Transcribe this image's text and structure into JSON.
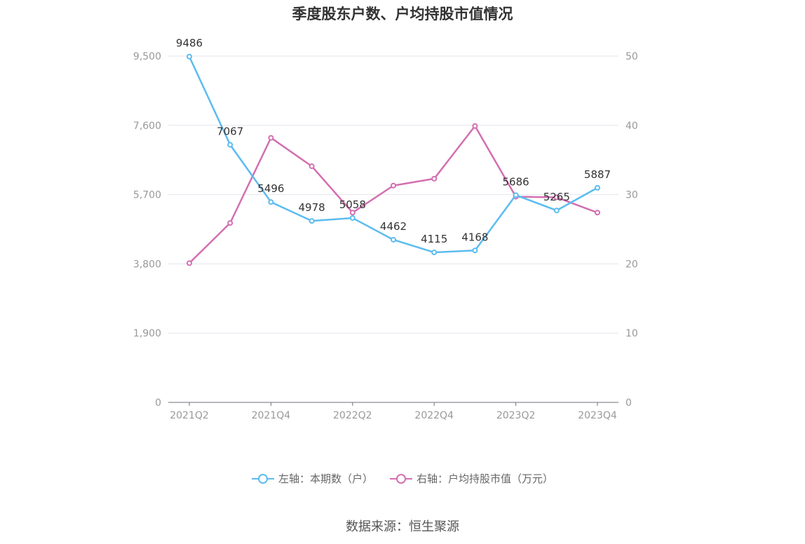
{
  "title": "季度股东户数、户均持股市值情况",
  "source": "数据来源：恒生聚源",
  "colors": {
    "left_series": "#5bbcf0",
    "right_series": "#d36fb0"
  },
  "chart_data": {
    "type": "line",
    "x": [
      "2021Q2",
      "2021Q3",
      "2021Q4",
      "2022Q1",
      "2022Q2",
      "2022Q3",
      "2022Q4",
      "2023Q1",
      "2023Q2",
      "2023Q3",
      "2023Q4"
    ],
    "x_tick_labels": [
      "2021Q2",
      "2021Q4",
      "2022Q2",
      "2022Q4",
      "2023Q2",
      "2023Q4"
    ],
    "left_axis": {
      "ylim": [
        0,
        9500
      ],
      "ticks": [
        0,
        1900,
        3800,
        5700,
        7600,
        9500
      ],
      "tick_labels": [
        "0",
        "1,900",
        "3,800",
        "5,700",
        "7,600",
        "9,500"
      ]
    },
    "right_axis": {
      "ylim": [
        0,
        50
      ],
      "ticks": [
        0,
        10,
        20,
        30,
        40,
        50
      ],
      "tick_labels": [
        "0",
        "10",
        "20",
        "30",
        "40",
        "50"
      ]
    },
    "series": [
      {
        "name": "左轴：本期数（户）",
        "axis": "left",
        "values": [
          9486,
          7067,
          5496,
          4978,
          5058,
          4462,
          4115,
          4168,
          5686,
          5265,
          5887
        ],
        "data_labels": [
          "9486",
          "7067",
          "5496",
          "4978",
          "5058",
          "4462",
          "4115",
          "4168",
          "5686",
          "5265",
          "5887"
        ]
      },
      {
        "name": "右轴：户均持股市值（万元）",
        "axis": "right",
        "values": [
          20.1,
          25.9,
          38.2,
          34.1,
          27.4,
          31.3,
          32.3,
          39.9,
          29.7,
          29.6,
          27.4
        ]
      }
    ],
    "grid": true,
    "legend": "bottom-center"
  }
}
